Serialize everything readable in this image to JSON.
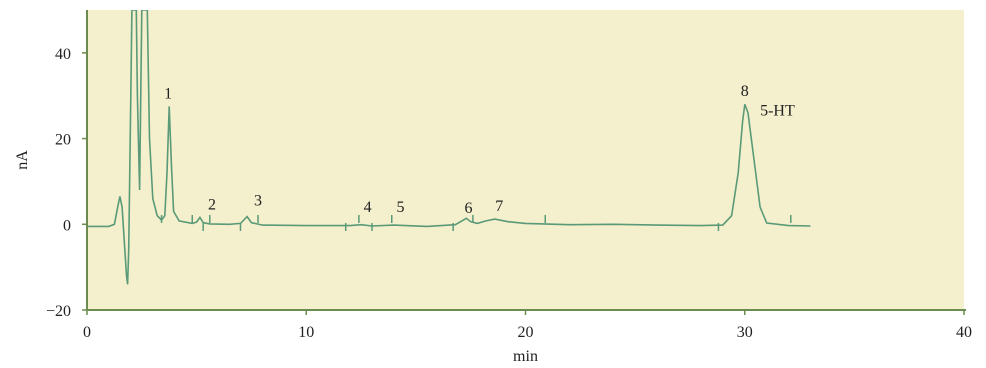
{
  "chart_data": {
    "type": "line",
    "title": "",
    "xlabel": "min",
    "ylabel": "nA",
    "xlim": [
      0,
      40
    ],
    "ylim": [
      -20,
      50
    ],
    "x_ticks": [
      "0",
      "10",
      "20",
      "30",
      "40"
    ],
    "y_ticks": [
      "−20",
      "0",
      "20",
      "40"
    ],
    "x_tick_values": [
      0,
      10,
      20,
      30,
      40
    ],
    "y_tick_values": [
      -20,
      0,
      20,
      40
    ],
    "grid": false,
    "colors": {
      "background": "#f4efcc",
      "axis": "#6b8c4e",
      "trace": "#5a9a78",
      "markers": "#5a9a78"
    },
    "series": [
      {
        "points": [
          [
            0,
            -0.5
          ],
          [
            1.0,
            -0.5
          ],
          [
            1.25,
            0
          ],
          [
            1.4,
            4
          ],
          [
            1.5,
            6.5
          ],
          [
            1.6,
            4
          ],
          [
            1.7,
            -4
          ],
          [
            1.8,
            -12
          ],
          [
            1.85,
            -14
          ],
          [
            1.9,
            -6
          ],
          [
            2.0,
            30
          ],
          [
            2.05,
            50
          ],
          [
            2.25,
            50
          ],
          [
            2.3,
            30
          ],
          [
            2.4,
            8
          ],
          [
            2.5,
            50
          ],
          [
            2.75,
            50
          ],
          [
            2.85,
            20
          ],
          [
            3.0,
            6
          ],
          [
            3.2,
            2
          ],
          [
            3.4,
            1
          ],
          [
            3.55,
            2
          ],
          [
            3.65,
            12
          ],
          [
            3.75,
            27.5
          ],
          [
            3.85,
            14
          ],
          [
            3.95,
            3
          ],
          [
            4.2,
            0.8
          ],
          [
            4.8,
            0.2
          ],
          [
            5.0,
            0.5
          ],
          [
            5.15,
            1.6
          ],
          [
            5.3,
            0.4
          ],
          [
            5.6,
            0.1
          ],
          [
            6.5,
            0
          ],
          [
            7.0,
            0.2
          ],
          [
            7.3,
            1.8
          ],
          [
            7.5,
            0.4
          ],
          [
            8.0,
            -0.2
          ],
          [
            10,
            -0.3
          ],
          [
            12,
            -0.3
          ],
          [
            12.5,
            -0.1
          ],
          [
            13,
            -0.4
          ],
          [
            14,
            -0.2
          ],
          [
            15.5,
            -0.5
          ],
          [
            16.8,
            -0.1
          ],
          [
            17.1,
            0.8
          ],
          [
            17.3,
            1.4
          ],
          [
            17.5,
            0.6
          ],
          [
            17.8,
            0.2
          ],
          [
            18.2,
            0.8
          ],
          [
            18.6,
            1.2
          ],
          [
            19.2,
            0.6
          ],
          [
            20,
            0.2
          ],
          [
            22,
            -0.1
          ],
          [
            24,
            0
          ],
          [
            26,
            -0.2
          ],
          [
            28,
            -0.3
          ],
          [
            29.0,
            -0.2
          ],
          [
            29.4,
            2
          ],
          [
            29.7,
            12
          ],
          [
            29.9,
            24
          ],
          [
            30.0,
            28
          ],
          [
            30.15,
            26
          ],
          [
            30.4,
            16
          ],
          [
            30.7,
            4
          ],
          [
            31.0,
            0.3
          ],
          [
            32,
            -0.3
          ],
          [
            33,
            -0.4
          ]
        ]
      }
    ],
    "peaks": [
      {
        "label": "1",
        "x": 3.7,
        "y": 28
      },
      {
        "label": "2",
        "x": 5.7,
        "y": 2
      },
      {
        "label": "3",
        "x": 7.8,
        "y": 3
      },
      {
        "label": "4",
        "x": 12.8,
        "y": 1.5
      },
      {
        "label": "5",
        "x": 14.3,
        "y": 1.5
      },
      {
        "label": "6",
        "x": 17.4,
        "y": 1.2
      },
      {
        "label": "7",
        "x": 18.8,
        "y": 1.7
      },
      {
        "label": "8",
        "x": 30.0,
        "y": 28.5
      },
      {
        "label": "5-HT",
        "x": 30.7,
        "y": 24
      }
    ],
    "markers": [
      [
        3.4,
        1
      ],
      [
        4.8,
        1
      ],
      [
        5.3,
        -1
      ],
      [
        5.6,
        1
      ],
      [
        7.0,
        -1
      ],
      [
        7.8,
        1
      ],
      [
        11.8,
        -1
      ],
      [
        12.4,
        1
      ],
      [
        13.0,
        -1
      ],
      [
        13.9,
        1
      ],
      [
        16.7,
        -1
      ],
      [
        17.6,
        1
      ],
      [
        20.9,
        1
      ],
      [
        28.8,
        -1
      ],
      [
        32.1,
        1
      ]
    ]
  }
}
